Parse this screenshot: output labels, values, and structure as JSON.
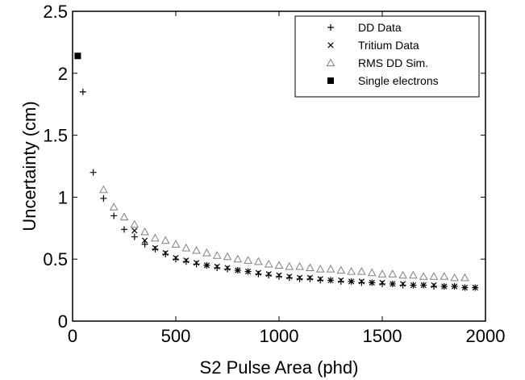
{
  "chart_data": {
    "type": "scatter",
    "xlabel": "S2 Pulse Area (phd)",
    "ylabel": "Uncertainty  (cm)",
    "xlim": [
      0,
      2000
    ],
    "ylim": [
      0,
      2.5
    ],
    "xticks": [
      "0",
      "500",
      "1000",
      "1500",
      "2000"
    ],
    "yticks": [
      "0",
      "0.5",
      "1",
      "1.5",
      "2",
      "2.5"
    ],
    "grid": false,
    "legend_position": "top-right",
    "series": [
      {
        "name": "DD Data",
        "marker": "plus",
        "color": "#000000",
        "x": [
          50,
          100,
          150,
          200,
          250,
          300,
          350,
          400,
          450,
          500,
          550,
          600,
          650,
          700,
          750,
          800,
          850,
          900,
          950,
          1000,
          1050,
          1100,
          1150,
          1200,
          1250,
          1300,
          1350,
          1400,
          1450,
          1500,
          1550,
          1600,
          1650,
          1700,
          1750,
          1800,
          1850,
          1900,
          1950
        ],
        "y": [
          1.85,
          1.2,
          0.99,
          0.85,
          0.74,
          0.68,
          0.62,
          0.58,
          0.54,
          0.5,
          0.48,
          0.46,
          0.45,
          0.43,
          0.42,
          0.41,
          0.4,
          0.38,
          0.37,
          0.36,
          0.35,
          0.34,
          0.34,
          0.33,
          0.33,
          0.32,
          0.32,
          0.31,
          0.31,
          0.3,
          0.3,
          0.29,
          0.29,
          0.29,
          0.28,
          0.28,
          0.28,
          0.27,
          0.27
        ]
      },
      {
        "name": "Tritium Data",
        "marker": "cross",
        "color": "#000000",
        "x": [
          300,
          350,
          400,
          450,
          500,
          550,
          600,
          650,
          700,
          750,
          800,
          850,
          900,
          950,
          1000,
          1050,
          1100,
          1150,
          1200,
          1250,
          1300,
          1350,
          1400,
          1450,
          1500,
          1550,
          1600,
          1650,
          1700,
          1750,
          1800,
          1850,
          1900,
          1950
        ],
        "y": [
          0.73,
          0.65,
          0.59,
          0.55,
          0.51,
          0.49,
          0.47,
          0.45,
          0.44,
          0.43,
          0.41,
          0.4,
          0.39,
          0.38,
          0.37,
          0.36,
          0.35,
          0.35,
          0.34,
          0.33,
          0.33,
          0.32,
          0.32,
          0.31,
          0.31,
          0.3,
          0.3,
          0.29,
          0.29,
          0.29,
          0.28,
          0.28,
          0.27,
          0.27
        ]
      },
      {
        "name": "RMS DD Sim.",
        "marker": "triangle",
        "color": "#808080",
        "x": [
          150,
          200,
          250,
          300,
          350,
          400,
          450,
          500,
          550,
          600,
          650,
          700,
          750,
          800,
          850,
          900,
          950,
          1000,
          1050,
          1100,
          1150,
          1200,
          1250,
          1300,
          1350,
          1400,
          1450,
          1500,
          1550,
          1600,
          1650,
          1700,
          1750,
          1800,
          1850,
          1900
        ],
        "y": [
          1.06,
          0.92,
          0.84,
          0.78,
          0.72,
          0.67,
          0.65,
          0.62,
          0.59,
          0.57,
          0.55,
          0.53,
          0.52,
          0.5,
          0.49,
          0.48,
          0.46,
          0.45,
          0.44,
          0.44,
          0.43,
          0.42,
          0.42,
          0.41,
          0.4,
          0.4,
          0.39,
          0.38,
          0.38,
          0.37,
          0.37,
          0.36,
          0.36,
          0.36,
          0.35,
          0.35
        ]
      },
      {
        "name": "Single electrons",
        "marker": "square",
        "color": "#000000",
        "x": [
          25
        ],
        "y": [
          2.14
        ]
      }
    ]
  }
}
